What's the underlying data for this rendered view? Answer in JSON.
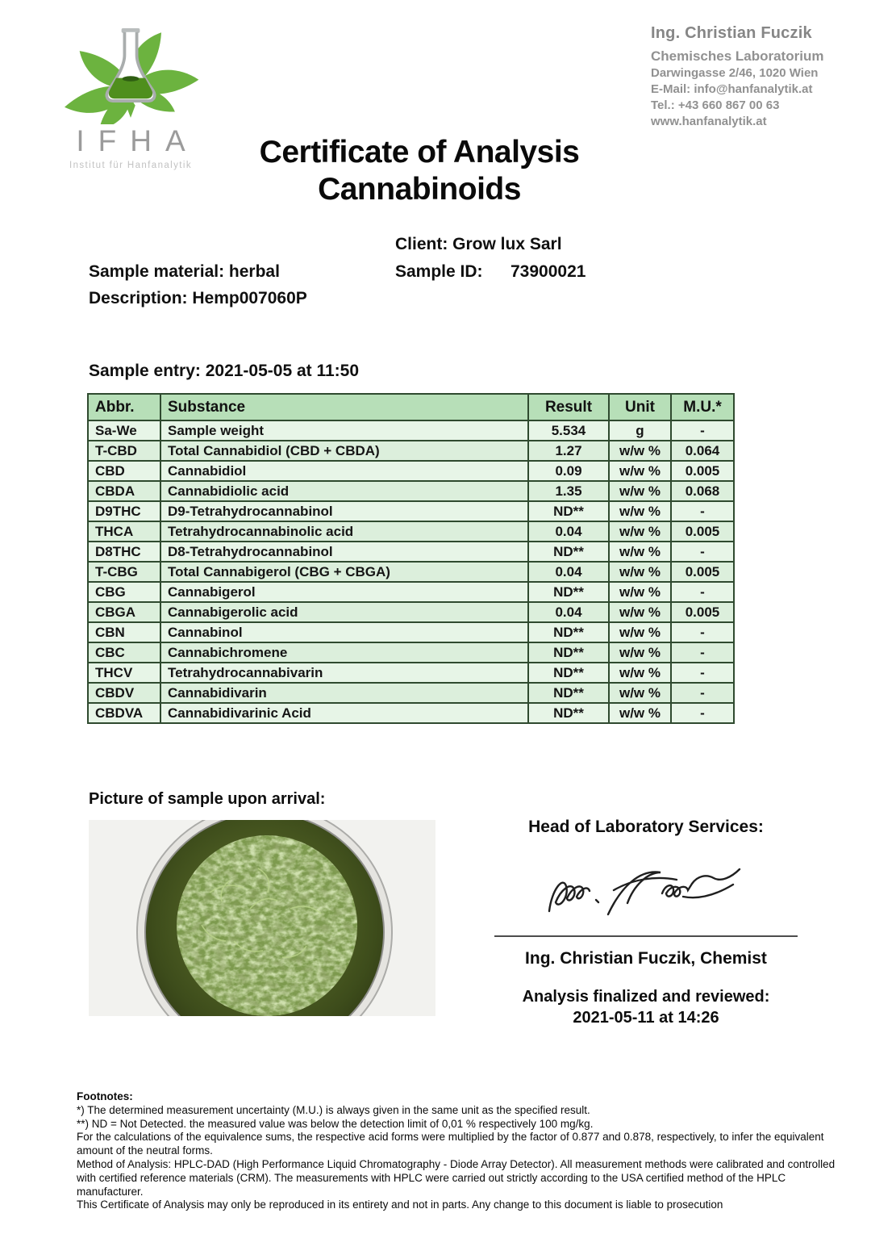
{
  "logo": {
    "acronym": "IFHA",
    "subtitle": "Institut für Hanfanalytik"
  },
  "lab": {
    "name": "Ing. Christian Fuczik",
    "lines": [
      "Chemisches Laboratorium",
      "Darwingasse 2/46, 1020 Wien",
      "E-Mail: info@hanfanalytik.at",
      "Tel.: +43 660 867 00 63",
      "www.hanfanalytik.at"
    ]
  },
  "title": {
    "line1": "Certificate of Analysis",
    "line2": "Cannabinoids"
  },
  "sample_info": {
    "client": "Client: Grow lux Sarl",
    "material": "Sample material: herbal",
    "sample_id_label": "Sample ID:",
    "sample_id_value": "73900021",
    "description": "Description: Hemp007060P",
    "entry": "Sample entry: 2021-05-05 at 11:50"
  },
  "table": {
    "headers": [
      "Abbr.",
      "Substance",
      "Result",
      "Unit",
      "M.U.*"
    ],
    "rows": [
      [
        "Sa-We",
        "Sample weight",
        "5.534",
        "g",
        "-"
      ],
      [
        "T-CBD",
        "Total Cannabidiol (CBD + CBDA)",
        "1.27",
        "w/w %",
        "0.064"
      ],
      [
        "CBD",
        "Cannabidiol",
        "0.09",
        "w/w %",
        "0.005"
      ],
      [
        "CBDA",
        "Cannabidiolic acid",
        "1.35",
        "w/w %",
        "0.068"
      ],
      [
        "D9THC",
        "D9-Tetrahydrocannabinol",
        "ND**",
        "w/w %",
        "-"
      ],
      [
        "THCA",
        "Tetrahydrocannabinolic acid",
        "0.04",
        "w/w %",
        "0.005"
      ],
      [
        "D8THC",
        "D8-Tetrahydrocannabinol",
        "ND**",
        "w/w %",
        "-"
      ],
      [
        "T-CBG",
        "Total Cannabigerol (CBG + CBGA)",
        "0.04",
        "w/w %",
        "0.005"
      ],
      [
        "CBG",
        "Cannabigerol",
        "ND**",
        "w/w %",
        "-"
      ],
      [
        "CBGA",
        "Cannabigerolic acid",
        "0.04",
        "w/w %",
        "0.005"
      ],
      [
        "CBN",
        "Cannabinol",
        "ND**",
        "w/w %",
        "-"
      ],
      [
        "CBC",
        "Cannabichromene",
        "ND**",
        "w/w %",
        "-"
      ],
      [
        "THCV",
        "Tetrahydrocannabivarin",
        "ND**",
        "w/w %",
        "-"
      ],
      [
        "CBDV",
        "Cannabidivarin",
        "ND**",
        "w/w %",
        "-"
      ],
      [
        "CBDVA",
        "Cannabidivarinic Acid",
        "ND**",
        "w/w %",
        "-"
      ]
    ]
  },
  "sample_picture": {
    "label": "Picture of sample upon arrival:"
  },
  "signature": {
    "heading": "Head of Laboratory Services:",
    "name": "Ing. Christian Fuczik, Chemist",
    "finalized_label": "Analysis finalized and reviewed:",
    "finalized_date": "2021-05-11 at 14:26"
  },
  "footnotes": {
    "title": "Footnotes:",
    "lines": [
      "*) The determined measurement uncertainty (M.U.) is always given in the same unit as the specified result.",
      "**) ND = Not Detected. the measured value was below the detection limit of 0,01 % respectively 100 mg/kg.",
      "For the calculations of the equivalence sums, the respective acid forms were multiplied by the factor of 0.877 and 0.878, respectively, to infer the equivalent amount of the neutral forms.",
      "Method of Analysis: HPLC-DAD (High Performance Liquid Chromatography - Diode Array Detector). All measurement methods were calibrated and controlled with certified reference materials (CRM). The measurements with HPLC were carried out strictly according to the USA certified method of the HPLC manufacturer.",
      "This Certificate of Analysis may only be reproduced in its entirety and not in parts. Any change to this document is liable to prosecution"
    ]
  },
  "colors": {
    "table_header_bg": "#b7dfb8",
    "table_row_bg": "#e7f5e7",
    "table_row_alt_bg": "#dcefdc",
    "table_border": "#2f4a2f",
    "brand_green": "#6cb33f",
    "flask_liquid_green": "#4f8f1d",
    "text_gray": "#8d8d8d"
  }
}
